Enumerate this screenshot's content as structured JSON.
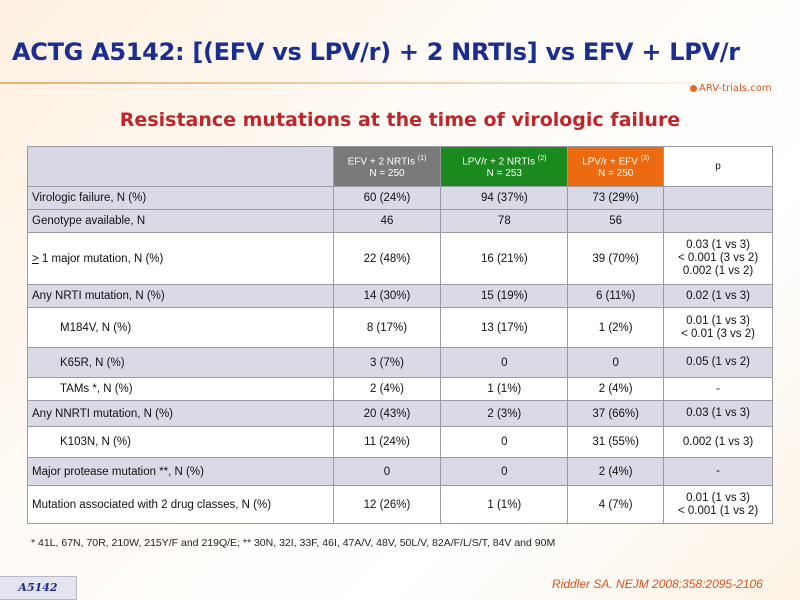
{
  "header": {
    "title": "ACTG A5142: [(EFV vs LPV/r) + 2 NRTIs] vs EFV + LPV/r",
    "logo_text": "ARV-trials.com",
    "subtitle": "Resistance mutations at the time of virologic failure"
  },
  "table": {
    "columns": [
      {
        "line1": "EFV + 2 NRTIs",
        "sup": "(1)",
        "line2": "N = 250",
        "color": "#7a7a7a"
      },
      {
        "line1": "LPV/r + 2 NRTIs",
        "sup": "(2)",
        "line2": "N = 253",
        "color": "#1a8a1f"
      },
      {
        "line1": "LPV/r + EFV",
        "sup": "(3)",
        "line2": "N = 250",
        "color": "#ec6a10"
      },
      {
        "line1": "p",
        "sup": "",
        "line2": "",
        "color": "#ffffff"
      }
    ],
    "rows": [
      {
        "label": "Virologic failure, N (%)",
        "c1": "60 (24%)",
        "c2": "94 (37%)",
        "c3": "73 (29%)",
        "p": [
          ""
        ]
      },
      {
        "label": "Genotype available, N",
        "c1": "46",
        "c2": "78",
        "c3": "56",
        "p": [
          ""
        ]
      },
      {
        "label_prefix": ">",
        "label": " 1 major mutation, N (%)",
        "c1": "22 (48%)",
        "c2": "16 (21%)",
        "c3": "39 (70%)",
        "p": [
          "0.03 (1 vs 3)",
          "< 0.001 (3 vs 2)",
          "0.002 (1 vs 2)"
        ]
      },
      {
        "label": "Any NRTI mutation, N (%)",
        "c1": "14 (30%)",
        "c2": "15 (19%)",
        "c3": "6 (11%)",
        "p": [
          "0.02 (1 vs 3)"
        ]
      },
      {
        "label": "M184V, N (%)",
        "c1": "8 (17%)",
        "c2": "13 (17%)",
        "c3": "1 (2%)",
        "p": [
          "0.01 (1 vs 3)",
          "< 0.01 (3 vs 2)"
        ]
      },
      {
        "label": "K65R, N (%)",
        "c1": "3 (7%)",
        "c2": "0",
        "c3": "0",
        "p": [
          "0.05 (1 vs 2)"
        ]
      },
      {
        "label": "TAMs *, N (%)",
        "c1": "2 (4%)",
        "c2": "1 (1%)",
        "c3": "2 (4%)",
        "p": [
          "-"
        ]
      },
      {
        "label": "Any NNRTI mutation, N (%)",
        "c1": "20 (43%)",
        "c2": "2 (3%)",
        "c3": "37 (66%)",
        "p": [
          "0.03 (1 vs 3)"
        ]
      },
      {
        "label": "K103N, N (%)",
        "c1": "11 (24%)",
        "c2": "0",
        "c3": "31 (55%)",
        "p": [
          "0.002 (1 vs 3)"
        ]
      },
      {
        "label": "Major protease mutation **, N (%)",
        "c1": "0",
        "c2": "0",
        "c3": "2 (4%)",
        "p": [
          "-"
        ]
      },
      {
        "label": "Mutation associated with 2 drug classes, N (%)",
        "c1": "12 (26%)",
        "c2": "1 (1%)",
        "c3": "4 (7%)",
        "p": [
          "0.01 (1 vs 3)",
          "< 0.001 (1 vs 2)"
        ]
      }
    ]
  },
  "footnote": "* 41L, 67N, 70R, 210W, 215Y/F and 219Q/E; ** 30N, 32I, 33F, 46I, 47A/V, 48V, 50L/V, 82A/F/L/S/T, 84V and 90M",
  "tag": "A5142",
  "citation": "Riddler SA. NEJM 2008;358:2095-2106"
}
